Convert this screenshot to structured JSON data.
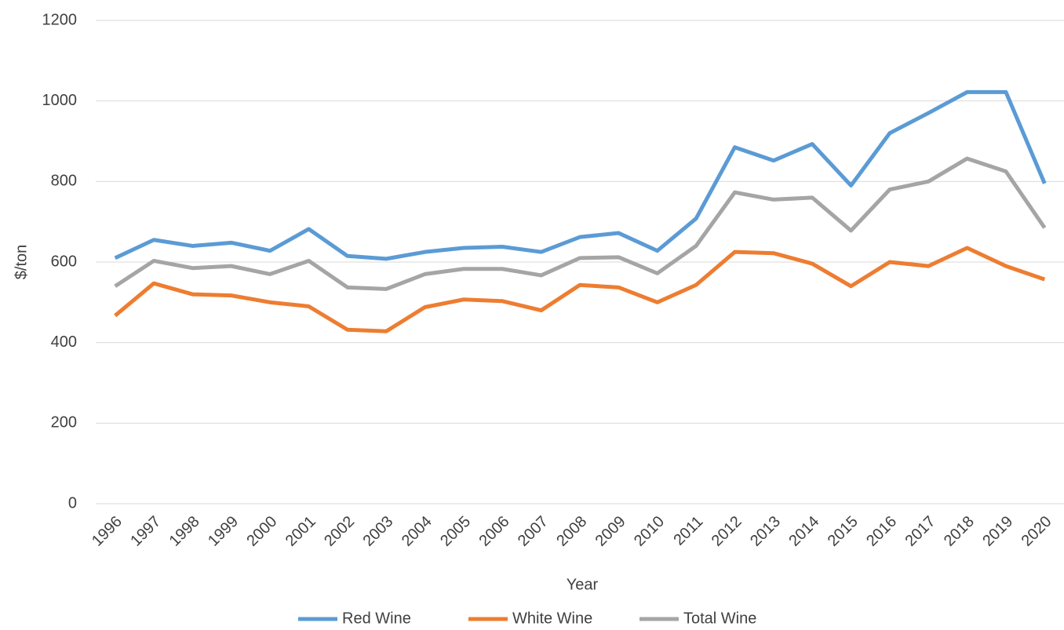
{
  "chart_data": {
    "type": "line",
    "x_label": "Year",
    "y_label": "$/ton",
    "categories": [
      "1996",
      "1997",
      "1998",
      "1999",
      "2000",
      "2001",
      "2002",
      "2003",
      "2004",
      "2005",
      "2006",
      "2007",
      "2008",
      "2009",
      "2010",
      "2011",
      "2012",
      "2013",
      "2014",
      "2015",
      "2016",
      "2017",
      "2018",
      "2019",
      "2020"
    ],
    "series": [
      {
        "name": "Red Wine",
        "color": "#5b9bd5",
        "values": [
          610,
          655,
          640,
          648,
          628,
          682,
          615,
          608,
          625,
          635,
          638,
          625,
          662,
          672,
          628,
          708,
          885,
          852,
          893,
          790,
          920,
          970,
          1022,
          1022,
          795
        ]
      },
      {
        "name": "White Wine",
        "color": "#ed7d31",
        "values": [
          467,
          547,
          520,
          517,
          500,
          490,
          432,
          428,
          488,
          507,
          503,
          480,
          543,
          537,
          500,
          543,
          625,
          622,
          596,
          540,
          600,
          590,
          635,
          590,
          557
        ]
      },
      {
        "name": "Total Wine",
        "color": "#a5a5a5",
        "values": [
          540,
          603,
          585,
          590,
          570,
          603,
          537,
          533,
          570,
          583,
          583,
          567,
          610,
          612,
          572,
          640,
          773,
          755,
          760,
          678,
          780,
          800,
          857,
          825,
          685
        ]
      }
    ],
    "ylim": [
      0,
      1200
    ],
    "yticks": [
      0,
      200,
      400,
      600,
      800,
      1000,
      1200
    ],
    "grid": true,
    "legend": "bottom"
  }
}
